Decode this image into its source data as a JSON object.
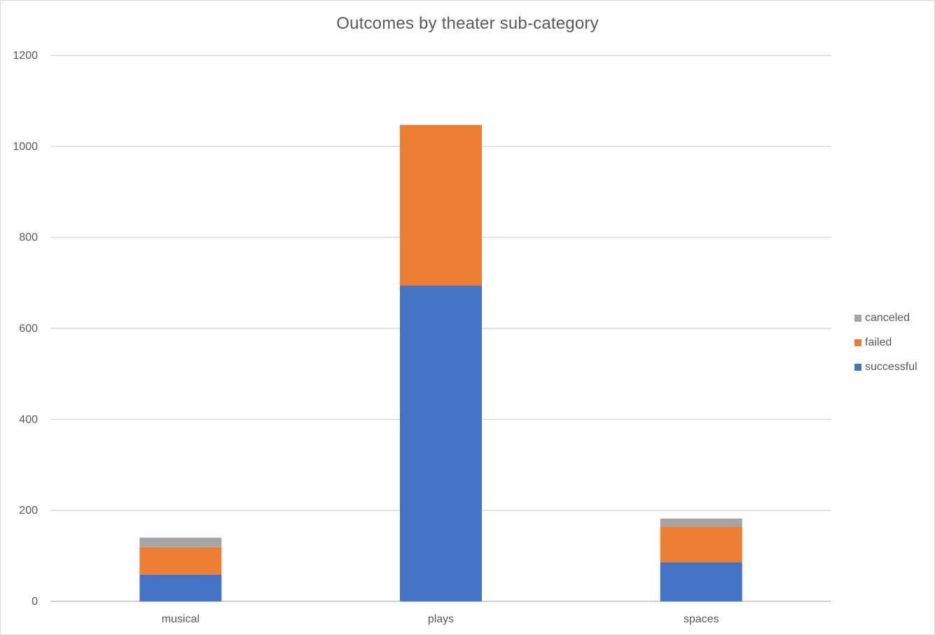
{
  "chart_data": {
    "type": "bar",
    "stacked": true,
    "title": "Outcomes by theater sub-category",
    "xlabel": "",
    "ylabel": "",
    "categories": [
      "musical",
      "plays",
      "spaces"
    ],
    "series": [
      {
        "name": "successful",
        "color": "#4472c4",
        "values": [
          59,
          694,
          86
        ]
      },
      {
        "name": "failed",
        "color": "#ed7d31",
        "values": [
          60,
          353,
          78
        ]
      },
      {
        "name": "canceled",
        "color": "#a5a5a5",
        "values": [
          21,
          0,
          18
        ]
      }
    ],
    "ylim": [
      0,
      1200
    ],
    "yticks": [
      "0",
      "200",
      "400",
      "600",
      "800",
      "1000",
      "1200"
    ],
    "grid": true,
    "legend_position": "right"
  }
}
